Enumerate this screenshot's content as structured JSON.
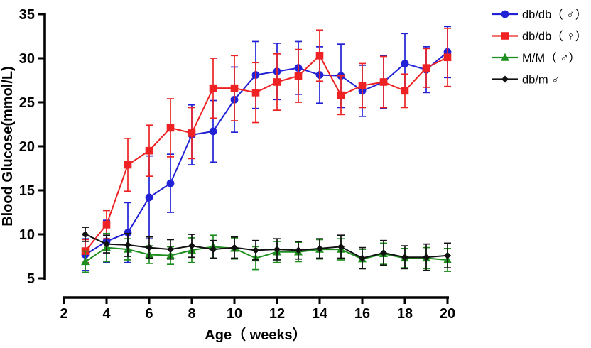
{
  "chart_data": {
    "type": "line",
    "title": "",
    "xlabel": "Age（ weeks）",
    "ylabel": "Blood Glucose(mmol/L)",
    "xlim": [
      2,
      20
    ],
    "ylim": [
      5,
      35
    ],
    "xticks": [
      2,
      4,
      6,
      8,
      10,
      12,
      14,
      16,
      18,
      20
    ],
    "yticks": [
      5,
      10,
      15,
      20,
      25,
      30,
      35
    ],
    "grid": false,
    "legend_position": "top-right",
    "error_bars": true,
    "x": [
      3,
      4,
      5,
      6,
      7,
      8,
      9,
      10,
      11,
      12,
      13,
      14,
      15,
      16,
      17,
      18,
      19,
      20
    ],
    "series": [
      {
        "id": "dbdb-male",
        "name": "db/db（ ♂）",
        "marker": "circle",
        "color": "#2121D6",
        "values": [
          7.7,
          9.2,
          10.2,
          14.2,
          15.8,
          21.3,
          21.7,
          25.3,
          28.1,
          28.5,
          28.9,
          28.1,
          28.0,
          26.3,
          27.3,
          29.4,
          28.7,
          30.7
        ],
        "errors": [
          1.8,
          2.4,
          3.4,
          4.7,
          3.3,
          3.4,
          3.5,
          3.7,
          3.8,
          3.2,
          3.0,
          3.2,
          3.6,
          2.9,
          3.0,
          3.4,
          2.6,
          2.9
        ]
      },
      {
        "id": "dbdb-female",
        "name": "db/db（ ♀）",
        "marker": "square",
        "color": "#EE2222",
        "values": [
          8.1,
          11.1,
          17.9,
          19.5,
          22.1,
          21.5,
          26.6,
          26.6,
          26.1,
          27.3,
          28.0,
          30.3,
          25.8,
          26.9,
          27.3,
          26.3,
          28.9,
          30.1
        ],
        "errors": [
          1.3,
          1.6,
          3.0,
          2.9,
          3.3,
          2.9,
          3.4,
          3.7,
          3.4,
          3.2,
          3.0,
          2.9,
          2.2,
          2.5,
          2.9,
          1.9,
          2.2,
          3.3
        ]
      },
      {
        "id": "mm-male",
        "name": "M/M（ ♂）",
        "marker": "triangle",
        "color": "#1E8E1E",
        "values": [
          6.9,
          8.5,
          8.3,
          7.7,
          7.6,
          8.2,
          8.6,
          8.4,
          7.3,
          8.0,
          8.0,
          8.3,
          8.3,
          7.2,
          7.8,
          7.3,
          7.3,
          7.1
        ],
        "errors": [
          1.2,
          1.6,
          1.2,
          1.0,
          1.0,
          1.4,
          1.3,
          1.2,
          1.3,
          1.2,
          1.1,
          1.1,
          1.2,
          1.1,
          1.2,
          1.1,
          1.2,
          1.3
        ]
      },
      {
        "id": "dbm-male",
        "name": "db/m ♂",
        "marker": "diamond",
        "color": "#111111",
        "values": [
          10.0,
          8.9,
          8.8,
          8.5,
          8.3,
          8.7,
          8.3,
          8.5,
          8.2,
          8.3,
          8.2,
          8.4,
          8.6,
          7.3,
          7.9,
          7.4,
          7.4,
          7.6
        ],
        "errors": [
          0.8,
          1.0,
          1.3,
          1.2,
          1.1,
          1.3,
          1.0,
          1.2,
          1.1,
          1.2,
          1.0,
          1.1,
          1.3,
          1.2,
          1.4,
          1.3,
          1.5,
          1.4
        ]
      }
    ]
  }
}
